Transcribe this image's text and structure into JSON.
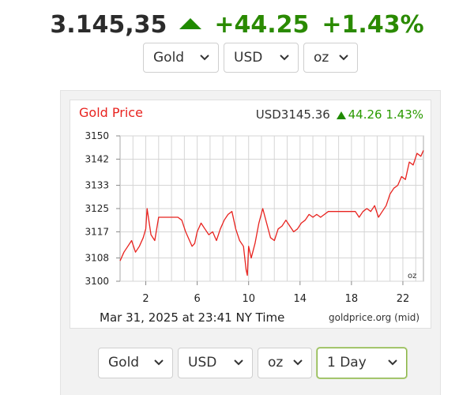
{
  "header": {
    "price": "3.145,35",
    "change": "+44.25",
    "change_percent": "+1.43%",
    "up_color": "#1f8a00"
  },
  "top_selectors": {
    "metal": "Gold",
    "currency": "USD",
    "unit": "oz"
  },
  "chart": {
    "title": "Gold Price",
    "quote_currency_price": "USD3145.36",
    "quote_change": "44.26",
    "quote_change_percent": "1.43%",
    "unit_label": "oz",
    "timestamp": "Mar 31, 2025 at 23:41 NY Time",
    "source": "goldprice.org (mid)",
    "line_color": "#e8231f",
    "title_color": "#e8231f"
  },
  "chart_data": {
    "type": "line",
    "title": "Gold Price",
    "xlabel": "",
    "ylabel": "",
    "x_ticks": [
      "2",
      "6",
      "10",
      "14",
      "18",
      "22"
    ],
    "y_ticks": [
      "3100",
      "3108",
      "3117",
      "3125",
      "3133",
      "3142",
      "3150"
    ],
    "xlim": [
      0,
      23.6
    ],
    "ylim": [
      3100,
      3150
    ],
    "grid": true,
    "series": [
      {
        "x": [
          0,
          0.3,
          0.6,
          0.9,
          1.2,
          1.5,
          1.8,
          2.0,
          2.1,
          2.4,
          2.7,
          3.0,
          3.3,
          3.6,
          3.9,
          4.2,
          4.5,
          4.8,
          5.1,
          5.4,
          5.6,
          5.8,
          6.0,
          6.3,
          6.6,
          6.9,
          7.2,
          7.5,
          7.8,
          8.1,
          8.4,
          8.7,
          9.0,
          9.3,
          9.6,
          9.8,
          9.9,
          10.0,
          10.2,
          10.5,
          10.8,
          11.1,
          11.4,
          11.7,
          12.0,
          12.3,
          12.6,
          12.9,
          13.2,
          13.5,
          13.8,
          14.1,
          14.4,
          14.7,
          15.0,
          15.3,
          15.6,
          15.9,
          16.2,
          16.5,
          16.8,
          17.1,
          17.4,
          17.7,
          18.0,
          18.3,
          18.6,
          18.9,
          19.2,
          19.5,
          19.8,
          20.1,
          20.4,
          20.7,
          21.0,
          21.3,
          21.6,
          21.9,
          22.2,
          22.5,
          22.8,
          23.1,
          23.4,
          23.6
        ],
        "values": [
          3107,
          3110,
          3112,
          3114,
          3110,
          3112,
          3115,
          3118,
          3125,
          3116,
          3114,
          3122,
          3122,
          3122,
          3122,
          3122,
          3122,
          3121,
          3117,
          3114,
          3112,
          3113,
          3117,
          3120,
          3118,
          3116,
          3117,
          3114,
          3118,
          3121,
          3123,
          3124,
          3118,
          3114,
          3112,
          3104,
          3102,
          3112,
          3108,
          3113,
          3120,
          3125,
          3120,
          3115,
          3114,
          3118,
          3119,
          3121,
          3119,
          3117,
          3118,
          3120,
          3121,
          3123,
          3122,
          3123,
          3122,
          3123,
          3124,
          3124,
          3124,
          3124,
          3124,
          3124,
          3124,
          3124,
          3122,
          3124,
          3125,
          3124,
          3126,
          3122,
          3124,
          3126,
          3130,
          3132,
          3133,
          3136,
          3135,
          3141,
          3140,
          3144,
          3143,
          3145
        ]
      }
    ]
  },
  "bottom_selectors": {
    "metal": "Gold",
    "currency": "USD",
    "unit": "oz",
    "range": "1 Day"
  }
}
